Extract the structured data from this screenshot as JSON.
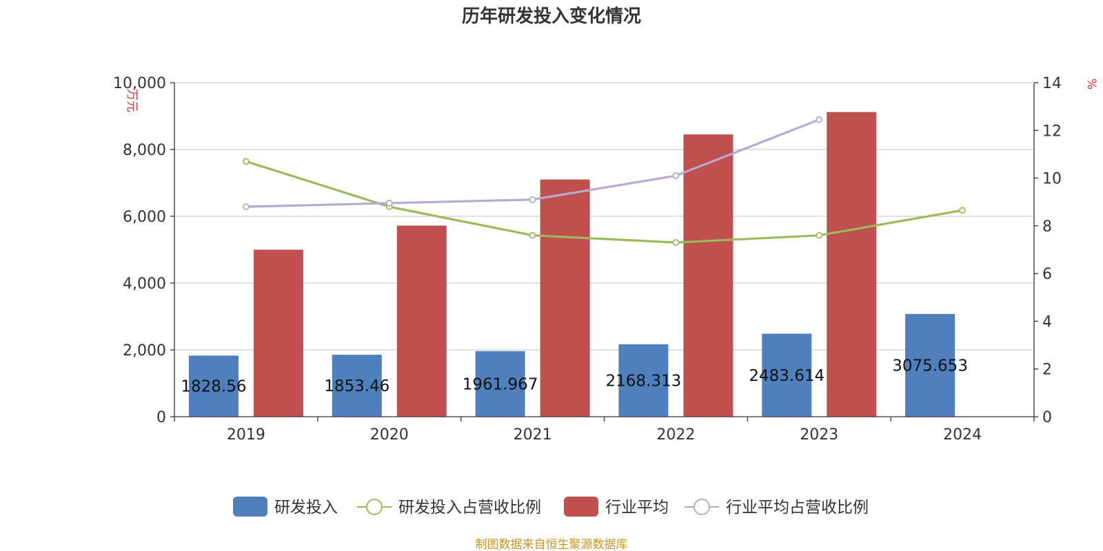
{
  "chart_data": {
    "type": "bar",
    "title": "历年研发投入变化情况",
    "categories": [
      "2019",
      "2020",
      "2021",
      "2022",
      "2023",
      "2024"
    ],
    "y_left": {
      "unit": "万元",
      "ylim": [
        0,
        10000
      ],
      "ticks": [
        "0",
        "2,000",
        "4,000",
        "6,000",
        "8,000",
        "10,000"
      ]
    },
    "y_right": {
      "unit": "%",
      "ylim": [
        0,
        14
      ],
      "ticks": [
        "0",
        "2",
        "4",
        "6",
        "8",
        "10",
        "12",
        "14"
      ]
    },
    "grid": true,
    "legend_position": "bottom",
    "series": [
      {
        "name": "研发投入",
        "type": "bar",
        "axis": "left",
        "color": "#4f7fbd",
        "values": [
          1828.56,
          1853.46,
          1961.967,
          2168.313,
          2483.614,
          3075.653
        ],
        "labels": [
          "1828.56",
          "1853.46",
          "1961.967",
          "2168.313",
          "2483.614",
          "3075.653"
        ]
      },
      {
        "name": "研发投入占营收比例",
        "type": "line",
        "axis": "right",
        "color": "#9bbb59",
        "values": [
          10.7,
          8.8,
          7.6,
          7.3,
          7.6,
          8.65
        ]
      },
      {
        "name": "行业平均",
        "type": "bar",
        "axis": "left",
        "color": "#c0504d",
        "values": [
          5000,
          5720,
          7100,
          8450,
          9120,
          null
        ]
      },
      {
        "name": "行业平均占营收比例",
        "type": "line",
        "axis": "right",
        "color": "#b8a9d0",
        "values": [
          8.8,
          8.95,
          9.1,
          10.1,
          12.45,
          null
        ]
      }
    ],
    "source": "制图数据来自恒生聚源数据库"
  }
}
